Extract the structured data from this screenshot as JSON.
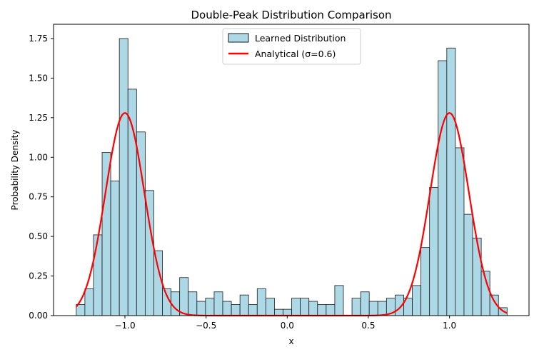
{
  "chart_data": {
    "type": "bar",
    "title": "Double-Peak Distribution Comparison",
    "xlabel": "x",
    "ylabel": "Probability Density",
    "xlim": [
      -1.44,
      1.49
    ],
    "ylim": [
      0,
      1.84
    ],
    "xticks": [
      -1.0,
      -0.5,
      0.0,
      0.5,
      1.0
    ],
    "xtick_labels": [
      "−1.0",
      "−0.5",
      "0.0",
      "0.5",
      "1.0"
    ],
    "yticks": [
      0.0,
      0.25,
      0.5,
      0.75,
      1.0,
      1.25,
      1.5,
      1.75
    ],
    "ytick_labels": [
      "0.00",
      "0.25",
      "0.50",
      "0.75",
      "1.00",
      "1.25",
      "1.50",
      "1.75"
    ],
    "legend_position": "upper-center",
    "series": [
      {
        "name": "Learned Distribution",
        "kind": "histogram",
        "color": "#add8e6",
        "edge_color": "#1a1a1a",
        "bin_start": -1.3,
        "bin_width": 0.0531,
        "values": [
          0.07,
          0.17,
          0.51,
          1.03,
          0.85,
          1.75,
          1.43,
          1.16,
          0.79,
          0.41,
          0.17,
          0.15,
          0.24,
          0.15,
          0.09,
          0.11,
          0.15,
          0.09,
          0.07,
          0.13,
          0.07,
          0.17,
          0.11,
          0.04,
          0.04,
          0.11,
          0.11,
          0.09,
          0.07,
          0.07,
          0.19,
          0.0,
          0.11,
          0.15,
          0.09,
          0.09,
          0.11,
          0.13,
          0.11,
          0.19,
          0.43,
          0.81,
          1.61,
          1.69,
          1.06,
          0.64,
          0.49,
          0.28,
          0.13,
          0.05
        ]
      },
      {
        "name": "Analytical (σ=0.6)",
        "kind": "line",
        "color": "#ff0000",
        "peak_height": 1.28,
        "peak_centers": [
          -1.0,
          1.0
        ],
        "peak_width": 0.12
      }
    ]
  }
}
